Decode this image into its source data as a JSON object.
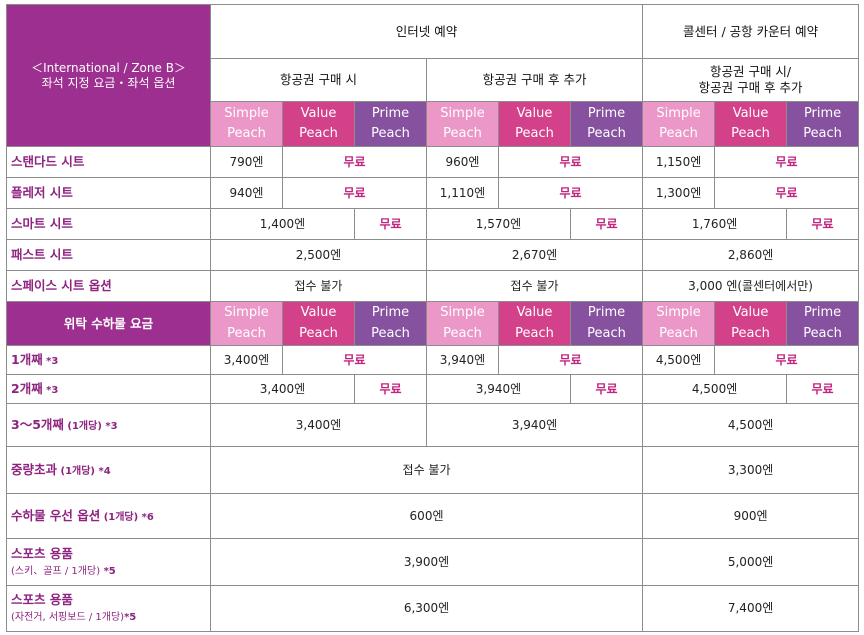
{
  "corner": {
    "line1": "＜International / Zone B＞",
    "line2": "좌석 지정 요금・좌석 옵션"
  },
  "channels": {
    "internet": "인터넷 예약",
    "callcenter": "콜센터 / 공항 카운터 예약"
  },
  "timing": {
    "at_purchase": "항공권 구매 시",
    "after_purchase": "항공권 구매 후 추가",
    "callcenter_line1": "항공권 구매 시/",
    "callcenter_line2": "항공권 구매 후 추가"
  },
  "fares": {
    "simple_1": "Simple",
    "simple_2": "Peach",
    "value_1": "Value",
    "value_2": "Peach",
    "prime_1": "Prime",
    "prime_2": "Peach"
  },
  "seats": {
    "standard": {
      "label": "스탠다드 시트",
      "a": "790엔",
      "a_free": "무료",
      "b": "960엔",
      "b_free": "무료",
      "c": "1,150엔",
      "c_free": "무료"
    },
    "pleasure": {
      "label": "플레저 시트",
      "a": "940엔",
      "a_free": "무료",
      "b": "1,110엔",
      "b_free": "무료",
      "c": "1,300엔",
      "c_free": "무료"
    },
    "smart": {
      "label": "스마트 시트",
      "a": "1,400엔",
      "a_free": "무료",
      "b": "1,570엔",
      "b_free": "무료",
      "c": "1,760엔",
      "c_free": "무료"
    },
    "fast": {
      "label": "패스트 시트",
      "a": "2,500엔",
      "b": "2,670엔",
      "c": "2,860엔"
    },
    "space": {
      "label": "스페이스 시트 옵션",
      "a": "접수 불가",
      "b": "접수 불가",
      "c": "3,000 엔(콜센터에서만)"
    }
  },
  "baggage_header": "위탁 수하물 요금",
  "baggage": {
    "first": {
      "label": "1개째",
      "note": " *3",
      "a": "3,400엔",
      "a_free": "무료",
      "b": "3,940엔",
      "b_free": "무료",
      "c": "4,500엔",
      "c_free": "무료"
    },
    "second": {
      "label": "2개째",
      "note": " *3",
      "a": "3,400엔",
      "a_free": "무료",
      "b": "3,940엔",
      "b_free": "무료",
      "c": "4,500엔",
      "c_free": "무료"
    },
    "third_fifth": {
      "label": "3～5개째",
      "sub": " (1개당)",
      "note": " *3",
      "a": "3,400엔",
      "b": "3,940엔",
      "c": "4,500엔"
    },
    "overweight": {
      "label": "중량초과",
      "sub": " (1개당)",
      "note": " *4",
      "ab": "접수 불가",
      "c": "3,300엔"
    },
    "priority": {
      "label": "수하물 우선 옵션",
      "sub": " (1개당)",
      "note": " *6",
      "ab": "600엔",
      "c": "900엔"
    },
    "sports1": {
      "label": "스포츠 용품",
      "sub": "(스키、골프 / 1개당)",
      "note": " *5",
      "ab": "3,900엔",
      "c": "5,000엔"
    },
    "sports2": {
      "label": "스포츠 용품",
      "sub": "(자전거, 서핑보드 / 1개당)",
      "note": "*5",
      "ab": "6,300엔",
      "c": "7,400엔"
    }
  }
}
